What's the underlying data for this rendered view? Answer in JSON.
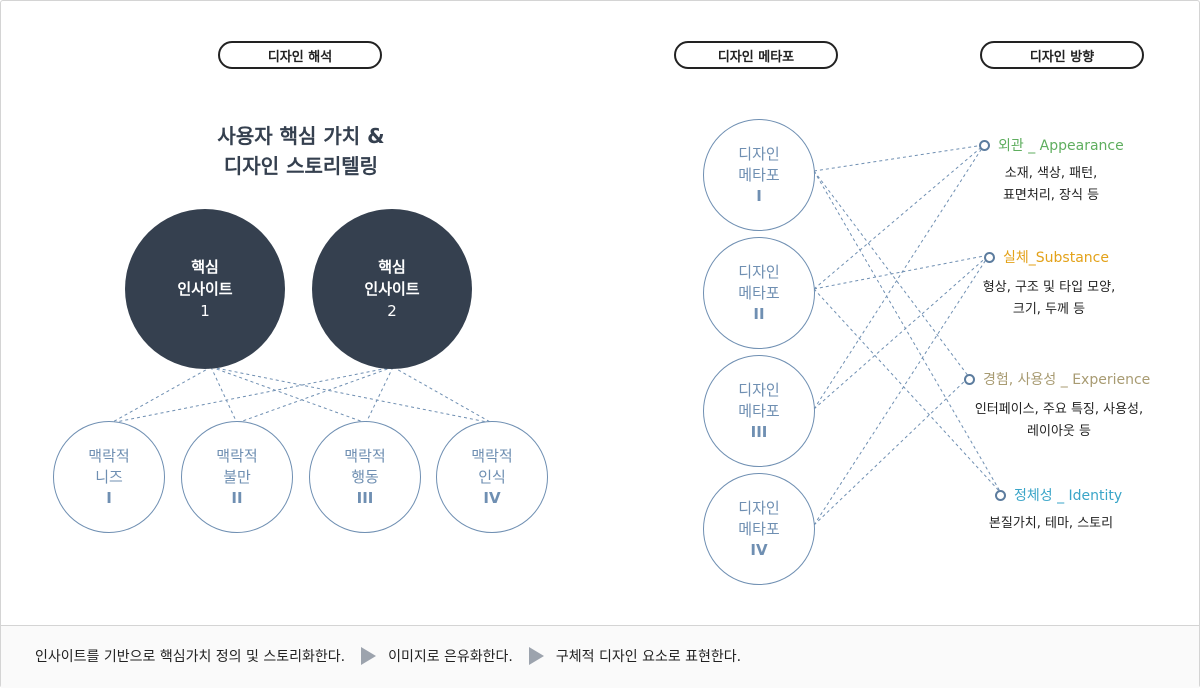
{
  "sections": {
    "interpretation": "디자인 해석",
    "metaphor": "디자인 메타포",
    "direction": "디자인 방향"
  },
  "headline": {
    "line1": "사용자 핵심 가치 &",
    "line2": "디자인 스토리텔링"
  },
  "insights": [
    {
      "l1": "핵심",
      "l2": "인사이트",
      "num": "1"
    },
    {
      "l1": "핵심",
      "l2": "인사이트",
      "num": "2"
    }
  ],
  "contexts": [
    {
      "l1": "맥락적",
      "l2": "니즈",
      "num": "I"
    },
    {
      "l1": "맥락적",
      "l2": "불만",
      "num": "II"
    },
    {
      "l1": "맥락적",
      "l2": "행동",
      "num": "III"
    },
    {
      "l1": "맥락적",
      "l2": "인식",
      "num": "IV"
    }
  ],
  "metaphors": [
    {
      "l1": "디자인",
      "l2": "메타포",
      "num": "I"
    },
    {
      "l1": "디자인",
      "l2": "메타포",
      "num": "II"
    },
    {
      "l1": "디자인",
      "l2": "메타포",
      "num": "III"
    },
    {
      "l1": "디자인",
      "l2": "메타포",
      "num": "IV"
    }
  ],
  "directions": [
    {
      "title": "외관 _ Appearance",
      "color": "#5fae5f",
      "desc1": "소재, 색상, 패턴,",
      "desc2": "표면처리, 장식 등"
    },
    {
      "title": "실체_Substance",
      "color": "#e3a21a",
      "desc1": "형상, 구조 및 타입 모양,",
      "desc2": "크기, 두께 등"
    },
    {
      "title": "경험, 사용성 _ Experience",
      "color": "#a89b72",
      "desc1": "인터페이스, 주요 특징, 사용성,",
      "desc2": "레이아웃 등"
    },
    {
      "title": "정체성 _ Identity",
      "color": "#3aa5c8",
      "desc1": "본질가치, 테마, 스토리",
      "desc2": ""
    }
  ],
  "footer": {
    "step1": "인사이트를 기반으로 핵심가치 정의 및 스토리화한다.",
    "step2": "이미지로 은유화한다.",
    "step3": "구체적 디자인 요소로 표현한다."
  },
  "colors": {
    "dark_circle": "#35404f",
    "ring": "#6f8fb2",
    "connector": "#6f8fb2"
  }
}
